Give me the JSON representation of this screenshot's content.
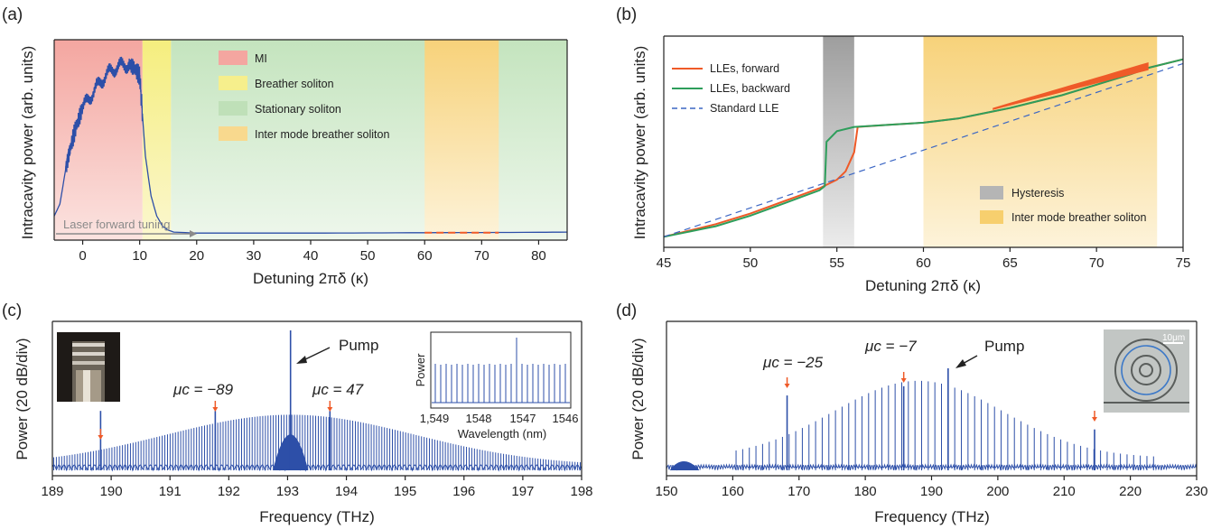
{
  "chart_data": [
    {
      "panel": "(a)",
      "type": "line",
      "xlabel": "Detuning 2πδ (κ)",
      "ylabel": "Intracavity power (arb. units)",
      "xlim": [
        -5,
        85
      ],
      "xticks": [
        0,
        10,
        20,
        30,
        40,
        50,
        60,
        70,
        80
      ],
      "regions": [
        {
          "name": "MI",
          "x": [
            -5,
            10.5
          ],
          "color": "#f4a6a0"
        },
        {
          "name": "Breather soliton",
          "x": [
            10.5,
            15.5
          ],
          "color": "#f6ef8c"
        },
        {
          "name": "Stationary soliton",
          "x": [
            15.5,
            85
          ],
          "color": "#cde8c8"
        },
        {
          "name": "Inter mode breather soliton",
          "x": [
            60,
            73
          ],
          "color": "#f8d98e"
        }
      ],
      "legend": [
        "MI",
        "Breather soliton",
        "Stationary soliton",
        "Inter mode breather soliton"
      ],
      "annotation": "Laser forward tuning",
      "series": [
        {
          "color": "#2d4fa8",
          "x": [
            -5,
            -4,
            -3,
            -2,
            -1,
            0,
            2,
            4,
            6,
            8,
            9,
            10,
            10.5,
            11,
            12,
            13,
            14,
            15,
            16,
            20,
            30,
            40,
            50,
            60,
            70,
            80,
            85
          ],
          "y": [
            0.12,
            0.18,
            0.35,
            0.48,
            0.58,
            0.66,
            0.75,
            0.82,
            0.86,
            0.88,
            0.86,
            0.82,
            0.62,
            0.42,
            0.22,
            0.12,
            0.07,
            0.05,
            0.04,
            0.035,
            0.035,
            0.035,
            0.036,
            0.037,
            0.038,
            0.039,
            0.04
          ]
        }
      ]
    },
    {
      "panel": "(b)",
      "type": "line",
      "xlabel": "Detuning 2πδ (κ)",
      "ylabel": "Intracavity power (arb. units)",
      "xlim": [
        45,
        75
      ],
      "xticks": [
        45,
        50,
        55,
        60,
        65,
        70,
        75
      ],
      "regions": [
        {
          "name": "Hysteresis",
          "x": [
            54.2,
            56
          ],
          "color": "#a9a9a9"
        },
        {
          "name": "Inter mode breather soliton",
          "x": [
            60,
            73.5
          ],
          "color": "#f8d98e"
        }
      ],
      "legend": [
        "LLEs, forward",
        "LLEs, backward",
        "Standard LLE"
      ],
      "region_legend": [
        "Hysteresis",
        "Inter mode breather soliton"
      ],
      "series": [
        {
          "name": "LLEs, forward",
          "color": "#ef5a28",
          "x": [
            45,
            48,
            50,
            52,
            54,
            55,
            55.5,
            56,
            56.2,
            58,
            60,
            62,
            65,
            68,
            70,
            72,
            73,
            75
          ],
          "y": [
            0.05,
            0.11,
            0.16,
            0.22,
            0.28,
            0.32,
            0.36,
            0.45,
            0.57,
            0.58,
            0.59,
            0.61,
            0.66,
            0.72,
            0.77,
            0.82,
            0.85,
            0.89
          ]
        },
        {
          "name": "LLEs, backward",
          "color": "#2e9e5b",
          "x": [
            45,
            48,
            50,
            52,
            54,
            54.3,
            54.4,
            55,
            56,
            58,
            60,
            62,
            65,
            68,
            70,
            72,
            73,
            75
          ],
          "y": [
            0.05,
            0.1,
            0.15,
            0.21,
            0.27,
            0.29,
            0.5,
            0.55,
            0.57,
            0.58,
            0.59,
            0.61,
            0.66,
            0.72,
            0.77,
            0.82,
            0.85,
            0.89
          ]
        },
        {
          "name": "Standard LLE",
          "color": "#3b66c4",
          "dashed": true,
          "x": [
            45,
            75
          ],
          "y": [
            0.05,
            0.87
          ]
        }
      ]
    },
    {
      "panel": "(c)",
      "type": "line",
      "xlabel": "Frequency (THz)",
      "ylabel": "Power (20 dB/div)",
      "xlim": [
        189,
        198
      ],
      "xticks": [
        189,
        190,
        191,
        192,
        193,
        194,
        195,
        196,
        197,
        198
      ],
      "pump_x": 193.05,
      "markers": [
        {
          "x": 189.82,
          "label": ""
        },
        {
          "x": 191.77,
          "label": "μc = −89"
        },
        {
          "x": 193.72,
          "label": "μc = 47"
        }
      ],
      "annotation": "Pump",
      "inset": {
        "ylabel": "Power",
        "xlabel": "Wavelength (nm)",
        "xticks": [
          "1,549",
          "1548",
          "1547",
          "1546"
        ]
      }
    },
    {
      "panel": "(d)",
      "type": "line",
      "xlabel": "Frequency (THz)",
      "ylabel": "Power (20 dB/div)",
      "xlim": [
        150,
        230
      ],
      "xticks": [
        150,
        160,
        170,
        180,
        190,
        200,
        210,
        220,
        230
      ],
      "pump_x": 192.5,
      "markers": [
        {
          "x": 168.2,
          "label": "μc = −25"
        },
        {
          "x": 185.8,
          "label": "μc = −7"
        },
        {
          "x": 214.6,
          "label": ""
        }
      ],
      "annotation": "Pump",
      "inset": {
        "scale_label": "10μm"
      }
    }
  ],
  "labels": {
    "a": "(a)",
    "b": "(b)",
    "c": "(c)",
    "d": "(d)",
    "a_xlabel": "Detuning 2πδ (κ)",
    "a_ylabel": "Intracavity power (arb. units)",
    "b_xlabel": "Detuning 2πδ (κ)",
    "b_ylabel": "Intracavity power (arb. units)",
    "c_xlabel": "Frequency (THz)",
    "c_ylabel": "Power (20 dB/div)",
    "d_xlabel": "Frequency (THz)",
    "d_ylabel": "Power (20 dB/div)",
    "a_leg_mi": "MI",
    "a_leg_breather": "Breather soliton",
    "a_leg_stationary": "Stationary soliton",
    "a_leg_inter": "Inter mode breather soliton",
    "a_arrow": "Laser forward tuning",
    "b_leg_forward": "LLEs, forward",
    "b_leg_backward": "LLEs, backward",
    "b_leg_standard": "Standard LLE",
    "b_leg_hyst": "Hysteresis",
    "b_leg_inter": "Inter mode breather soliton",
    "c_pump": "Pump",
    "c_mu1": "μc = −89",
    "c_mu2": "μc = 47",
    "c_inset_y": "Power",
    "c_inset_x": "Wavelength (nm)",
    "c_inset_t1": "1,549",
    "c_inset_t2": "1548",
    "c_inset_t3": "1547",
    "c_inset_t4": "1546",
    "d_pump": "Pump",
    "d_mu1": "μc = −25",
    "d_mu2": "μc = −7",
    "d_scale": "10μm"
  }
}
